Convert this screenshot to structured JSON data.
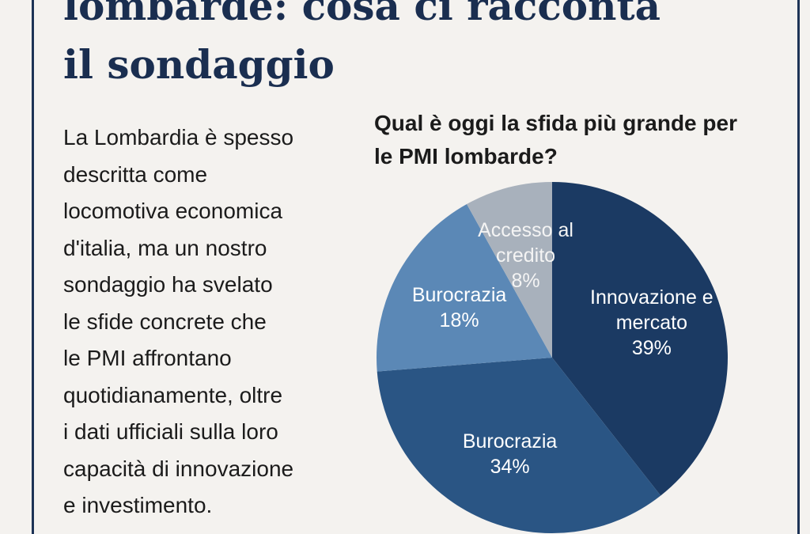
{
  "header": {
    "title_lines": [
      "lombarde: cosa ci racconta",
      "il sondaggio"
    ]
  },
  "article": {
    "lines": [
      "La Lombardia è spesso",
      "descritta come",
      "locomotiva economica",
      "d'italia, ma un nostro",
      "sondaggio ha svelato",
      "le sfide concrete che",
      "le PMI affrontano",
      "quotidianamente, oltre",
      "i dati ufficiali sulla loro",
      "capacità di innovazione",
      "e investimento."
    ]
  },
  "chart_data": {
    "type": "pie",
    "title": "Qual è oggi la sfida più grande per le PMI lombarde?",
    "categories": [
      "Innovazione e mercato",
      "Burocrazia",
      "Burocrazia",
      "Accesso al credito"
    ],
    "values": [
      39,
      34,
      18,
      8
    ],
    "value_labels": [
      "39%",
      "34%",
      "18%",
      "8%"
    ],
    "colors": [
      "#1b3a63",
      "#2a5584",
      "#5b88b6",
      "#a8b1bc"
    ]
  }
}
